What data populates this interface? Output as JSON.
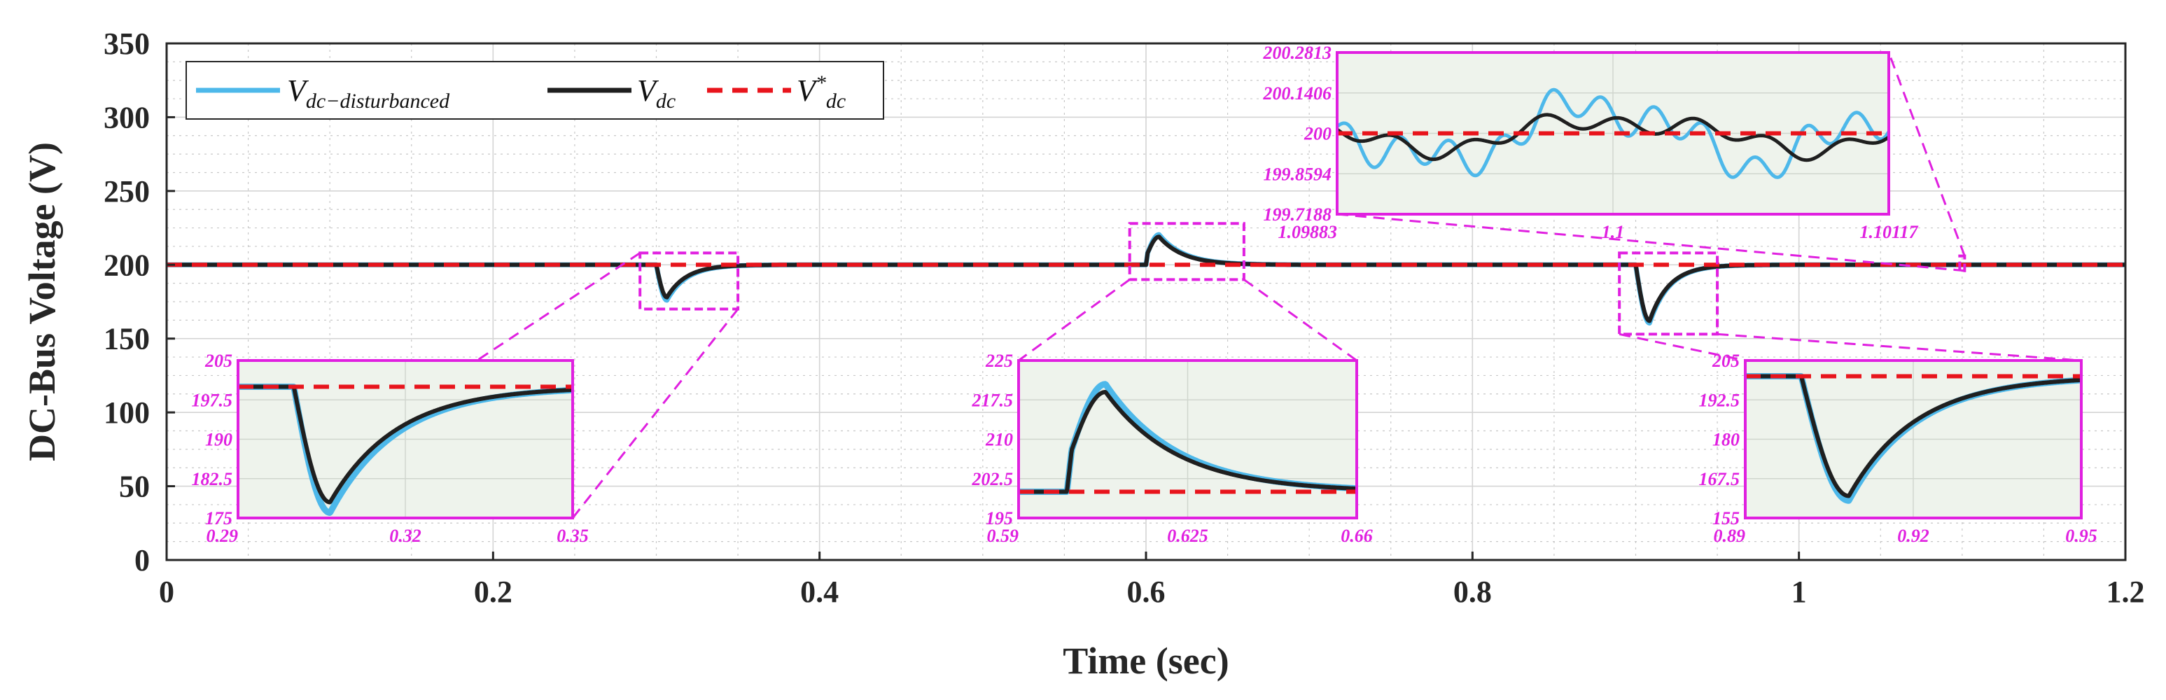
{
  "chart_data": {
    "type": "line",
    "title": "",
    "xlabel": "Time (sec)",
    "ylabel": "DC-Bus Voltage (V)",
    "xlim": [
      0,
      1.2
    ],
    "ylim": [
      0,
      350
    ],
    "xticks": [
      0,
      0.2,
      0.4,
      0.6,
      0.8,
      1.0,
      1.2
    ],
    "xtick_labels": [
      "0",
      "0.2",
      "0.4",
      "0.6",
      "0.8",
      "1",
      "1.2"
    ],
    "yticks": [
      0,
      50,
      100,
      150,
      200,
      250,
      300,
      350
    ],
    "ytick_labels": [
      "0",
      "50",
      "100",
      "150",
      "200",
      "250",
      "300",
      "350"
    ],
    "grid": true,
    "legend_position": "top-left",
    "colors": {
      "disturbed": "#4db8ea",
      "vdc": "#1f1f1f",
      "ref": "#e8141c",
      "zoom": "#e020e0",
      "inset_bg": "#eef3ec"
    },
    "series": [
      {
        "key": "disturbed",
        "name": "V_dc-disturbanced",
        "label_main": "V",
        "label_sub": "dc−disturbanced",
        "style": "solid"
      },
      {
        "key": "vdc",
        "name": "V_dc",
        "label_main": "V",
        "label_sub": "dc",
        "style": "solid"
      },
      {
        "key": "ref",
        "name": "V*_dc",
        "label_main": "V",
        "label_sup": "*",
        "label_sub": "dc",
        "style": "dashed",
        "value": 200
      }
    ],
    "events": [
      {
        "t0": 0.3,
        "type": "sag",
        "min": 178,
        "min_disturbed": 176,
        "tmin": 0.3065,
        "tau": 0.012
      },
      {
        "t0": 0.6,
        "type": "swell",
        "step": 208,
        "t_step": 0.601,
        "peak": 219,
        "peak_disturbed": 220.5,
        "tpeak": 0.608,
        "tau": 0.015
      },
      {
        "t0": 0.9,
        "type": "sag",
        "min": 162,
        "min_disturbed": 160.5,
        "tmin": 0.9085,
        "tau": 0.012
      }
    ],
    "insets": [
      {
        "name": "inset-sag-1",
        "xlim": [
          0.29,
          0.35
        ],
        "ylim": [
          175,
          205
        ],
        "xticks": [
          0.29,
          0.32,
          0.35
        ],
        "xtick_labels": [
          "0.29",
          "0.32",
          "0.35"
        ],
        "yticks": [
          175,
          182.5,
          190,
          197.5,
          205
        ],
        "ytick_labels": [
          "175",
          "182.5",
          "190",
          "197.5",
          "205"
        ]
      },
      {
        "name": "inset-swell",
        "xlim": [
          0.59,
          0.66
        ],
        "ylim": [
          195,
          225
        ],
        "xticks": [
          0.59,
          0.625,
          0.66
        ],
        "xtick_labels": [
          "0.59",
          "0.625",
          "0.66"
        ],
        "yticks": [
          195,
          202.5,
          210,
          217.5,
          225
        ],
        "ytick_labels": [
          "195",
          "202.5",
          "210",
          "217.5",
          "225"
        ]
      },
      {
        "name": "inset-sag-2",
        "xlim": [
          0.89,
          0.95
        ],
        "ylim": [
          155,
          205
        ],
        "xticks": [
          0.89,
          0.92,
          0.95
        ],
        "xtick_labels": [
          "0.89",
          "0.92",
          "0.95"
        ],
        "yticks": [
          155,
          167.5,
          180,
          192.5,
          205
        ],
        "ytick_labels": [
          "155",
          "167.5",
          "180",
          "192.5",
          "205"
        ]
      },
      {
        "name": "inset-ripple",
        "xlim": [
          1.09883,
          1.10117
        ],
        "ylim": [
          199.7188,
          200.2813
        ],
        "xticks": [
          1.09883,
          1.1,
          1.10117
        ],
        "xtick_labels": [
          "1.09883",
          "1.1",
          "1.10117"
        ],
        "yticks": [
          199.7188,
          199.8594,
          200,
          200.1406,
          200.2813
        ],
        "ytick_labels": [
          "199.7188",
          "199.8594",
          "200",
          "200.1406",
          "200.2813"
        ]
      }
    ],
    "zoom_boxes": [
      {
        "name": "zoom-box-sag-1",
        "xlim": [
          0.29,
          0.35
        ],
        "ylim": [
          170,
          208
        ]
      },
      {
        "name": "zoom-box-swell",
        "xlim": [
          0.59,
          0.66
        ],
        "ylim": [
          190,
          228
        ]
      },
      {
        "name": "zoom-box-sag-2",
        "xlim": [
          0.89,
          0.95
        ],
        "ylim": [
          153,
          208
        ]
      },
      {
        "name": "zoom-box-ripple",
        "xlim": [
          1.0985,
          1.1015
        ],
        "ylim": [
          196,
          206
        ]
      }
    ]
  }
}
